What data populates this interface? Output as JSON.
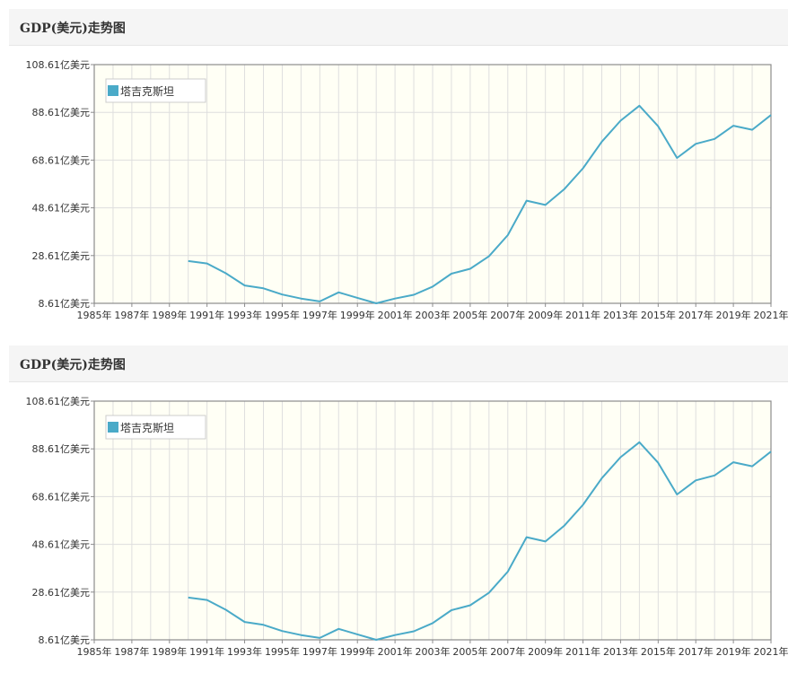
{
  "panels": [
    {
      "title": "GDP(美元)走势图"
    },
    {
      "title": "GDP(美元)走势图"
    }
  ],
  "colors": {
    "line": "#4aaac8",
    "plot_background": "#fffff5",
    "grid": "#dedede",
    "axis": "#8c8c8c"
  },
  "chart_data": [
    {
      "type": "line",
      "title": "GDP(美元)走势图",
      "xlabel": "",
      "ylabel": "",
      "xlim": [
        1985,
        2021
      ],
      "ylim": [
        8.61,
        108.61
      ],
      "grid": true,
      "legend_position": "top-left",
      "y_ticks": [
        "8.61亿美元",
        "28.61亿美元",
        "48.61亿美元",
        "68.61亿美元",
        "88.61亿美元",
        "108.61亿美元"
      ],
      "x_ticks": [
        "1985年",
        "1987年",
        "1989年",
        "1991年",
        "1993年",
        "1995年",
        "1997年",
        "1999年",
        "2001年",
        "2003年",
        "2005年",
        "2007年",
        "2009年",
        "2011年",
        "2013年",
        "2015年",
        "2017年",
        "2019年",
        "2021年"
      ],
      "series": [
        {
          "name": "塔吉克斯坦",
          "x": [
            1990,
            1991,
            1992,
            1993,
            1994,
            1995,
            1996,
            1997,
            1998,
            1999,
            2000,
            2001,
            2002,
            2003,
            2004,
            2005,
            2006,
            2007,
            2008,
            2009,
            2010,
            2011,
            2012,
            2013,
            2014,
            2015,
            2016,
            2017,
            2018,
            2019,
            2020,
            2021
          ],
          "values": [
            26.3,
            25.3,
            21.2,
            16.1,
            14.9,
            12.3,
            10.6,
            9.4,
            13.2,
            10.9,
            8.6,
            10.6,
            12.2,
            15.6,
            21.0,
            23.1,
            28.3,
            37.2,
            51.6,
            49.8,
            56.4,
            65.2,
            76.3,
            85.1,
            91.4,
            82.8,
            69.5,
            75.4,
            77.5,
            83.0,
            81.3,
            87.5
          ]
        }
      ]
    },
    {
      "type": "line",
      "title": "GDP(美元)走势图",
      "xlabel": "",
      "ylabel": "",
      "xlim": [
        1985,
        2021
      ],
      "ylim": [
        8.61,
        108.61
      ],
      "grid": true,
      "legend_position": "top-left",
      "y_ticks": [
        "8.61亿美元",
        "28.61亿美元",
        "48.61亿美元",
        "68.61亿美元",
        "88.61亿美元",
        "108.61亿美元"
      ],
      "x_ticks": [
        "1985年",
        "1987年",
        "1989年",
        "1991年",
        "1993年",
        "1995年",
        "1997年",
        "1999年",
        "2001年",
        "2003年",
        "2005年",
        "2007年",
        "2009年",
        "2011年",
        "2013年",
        "2015年",
        "2017年",
        "2019年",
        "2021年"
      ],
      "series": [
        {
          "name": "塔吉克斯坦",
          "x": [
            1990,
            1991,
            1992,
            1993,
            1994,
            1995,
            1996,
            1997,
            1998,
            1999,
            2000,
            2001,
            2002,
            2003,
            2004,
            2005,
            2006,
            2007,
            2008,
            2009,
            2010,
            2011,
            2012,
            2013,
            2014,
            2015,
            2016,
            2017,
            2018,
            2019,
            2020,
            2021
          ],
          "values": [
            26.3,
            25.3,
            21.2,
            16.1,
            14.9,
            12.3,
            10.6,
            9.4,
            13.2,
            10.9,
            8.6,
            10.6,
            12.2,
            15.6,
            21.0,
            23.1,
            28.3,
            37.2,
            51.6,
            49.8,
            56.4,
            65.2,
            76.3,
            85.1,
            91.4,
            82.8,
            69.5,
            75.4,
            77.5,
            83.0,
            81.3,
            87.5
          ]
        }
      ]
    }
  ]
}
